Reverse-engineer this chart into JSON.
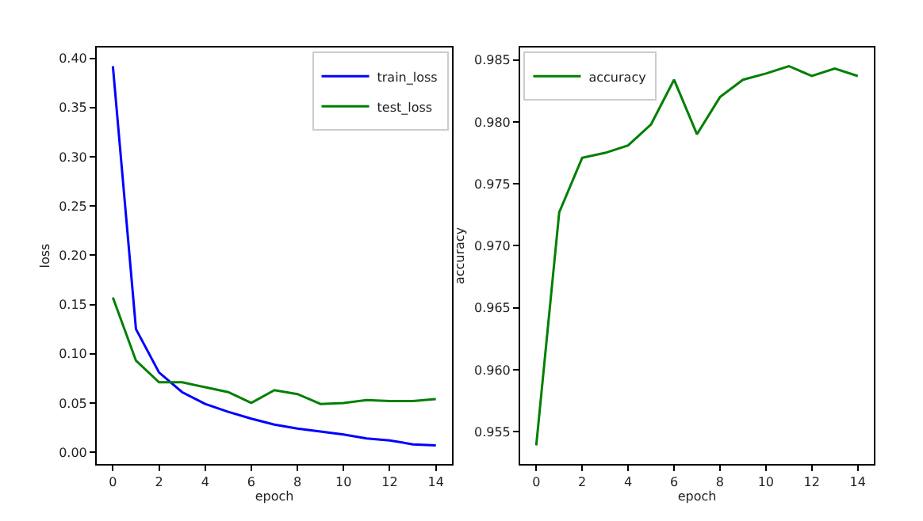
{
  "chart_data": [
    {
      "type": "line",
      "xlabel": "epoch",
      "ylabel": "loss",
      "x": [
        0,
        1,
        2,
        3,
        4,
        5,
        6,
        7,
        8,
        9,
        10,
        11,
        12,
        13,
        14
      ],
      "series": [
        {
          "name": "train_loss",
          "color": "#0000ff",
          "values": [
            0.392,
            0.125,
            0.081,
            0.061,
            0.049,
            0.041,
            0.034,
            0.028,
            0.024,
            0.021,
            0.018,
            0.014,
            0.012,
            0.008,
            0.007
          ]
        },
        {
          "name": "test_loss",
          "color": "#008000",
          "values": [
            0.157,
            0.093,
            0.071,
            0.071,
            0.066,
            0.061,
            0.05,
            0.063,
            0.059,
            0.049,
            0.05,
            0.053,
            0.052,
            0.052,
            0.054
          ]
        }
      ],
      "xlim": [
        -0.7,
        14.7
      ],
      "xticks": [
        0,
        2,
        4,
        6,
        8,
        10,
        12,
        14
      ],
      "ylim": [
        -0.012,
        0.411
      ],
      "yticks": [
        {
          "value": 0,
          "label": "0.00"
        },
        {
          "value": 0.05,
          "label": "0.05"
        },
        {
          "value": 0.1,
          "label": "0.10"
        },
        {
          "value": 0.15,
          "label": "0.15"
        },
        {
          "value": 0.2,
          "label": "0.20"
        },
        {
          "value": 0.25,
          "label": "0.25"
        },
        {
          "value": 0.3,
          "label": "0.30"
        },
        {
          "value": 0.35,
          "label": "0.35"
        },
        {
          "value": 0.4,
          "label": "0.40"
        }
      ],
      "grid": false,
      "legend": "top right",
      "marker": "none",
      "line_style": "solid"
    },
    {
      "type": "line",
      "xlabel": "epoch",
      "ylabel": "accuracy",
      "x": [
        0,
        1,
        2,
        3,
        4,
        5,
        6,
        7,
        8,
        9,
        10,
        11,
        12,
        13,
        14
      ],
      "series": [
        {
          "name": "accuracy",
          "color": "#008000",
          "values": [
            0.9539,
            0.9727,
            0.9771,
            0.9775,
            0.9781,
            0.9798,
            0.9834,
            0.979,
            0.982,
            0.9834,
            0.9839,
            0.9845,
            0.9837,
            0.9843,
            0.9837
          ]
        }
      ],
      "xlim": [
        -0.7,
        14.7
      ],
      "xticks": [
        0,
        2,
        4,
        6,
        8,
        10,
        12,
        14
      ],
      "ylim": [
        0.9524,
        0.986
      ],
      "yticks": [
        0.955,
        {
          "value": 0.96,
          "label": "0.960"
        },
        0.965,
        {
          "value": 0.97,
          "label": "0.970"
        },
        0.975,
        {
          "value": 0.98,
          "label": "0.980"
        },
        0.985
      ],
      "grid": false,
      "legend": "top left",
      "marker": "none",
      "line_style": "solid"
    }
  ]
}
